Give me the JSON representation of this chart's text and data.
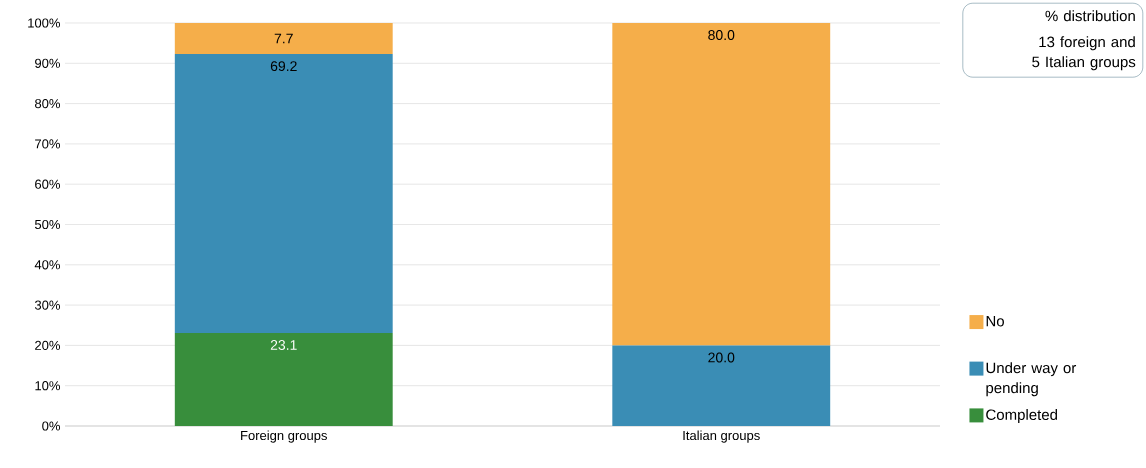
{
  "chart_data": {
    "type": "bar",
    "stacked": true,
    "categories": [
      "Foreign groups",
      "Italian groups"
    ],
    "series": [
      {
        "name": "Completed",
        "color": "#388e3c",
        "values": [
          23.1,
          null
        ],
        "value_labels": [
          "23.1",
          null
        ]
      },
      {
        "name": "Under way or pending",
        "color": "#3a8db5",
        "values": [
          69.2,
          20
        ],
        "value_labels": [
          "69.2",
          "20.0"
        ]
      },
      {
        "name": "No",
        "color": "#f5ae4a",
        "values": [
          7.7,
          80
        ],
        "value_labels": [
          "7.7",
          "80.0"
        ]
      }
    ],
    "ylim": [
      0,
      100
    ],
    "yticks": [
      {
        "value": 0,
        "label": "0%"
      },
      {
        "value": 10,
        "label": "10%"
      },
      {
        "value": 20,
        "label": "20%"
      },
      {
        "value": 30,
        "label": "30%"
      },
      {
        "value": 40,
        "label": "40%"
      },
      {
        "value": 50,
        "label": "50%"
      },
      {
        "value": 60,
        "label": "60%"
      },
      {
        "value": 70,
        "label": "70%"
      },
      {
        "value": 80,
        "label": "80%"
      },
      {
        "value": 90,
        "label": "90%"
      },
      {
        "value": 100,
        "label": "100%"
      }
    ],
    "grid": "y",
    "legend": "right",
    "annotations": [
      "% distribution",
      "13 foreign and 5 Italian groups"
    ]
  }
}
